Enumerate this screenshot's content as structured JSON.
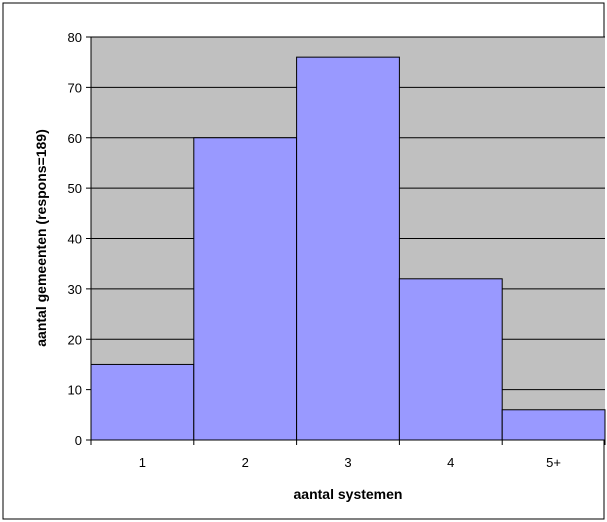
{
  "chart_data": {
    "type": "bar",
    "categories": [
      "1",
      "2",
      "3",
      "4",
      "5+"
    ],
    "values": [
      15,
      60,
      76,
      32,
      6
    ],
    "xlabel": "aantal systemen",
    "ylabel": "aantal gemeenten (respons=189)",
    "ylim": [
      0,
      80
    ],
    "yticks": [
      0,
      10,
      20,
      30,
      40,
      50,
      60,
      70,
      80
    ],
    "grid": true,
    "legend": "none",
    "colors": {
      "bar": "#9999ff",
      "plot_background": "#c0c0c0",
      "gridline": "#000000",
      "outline": "#000000"
    }
  }
}
